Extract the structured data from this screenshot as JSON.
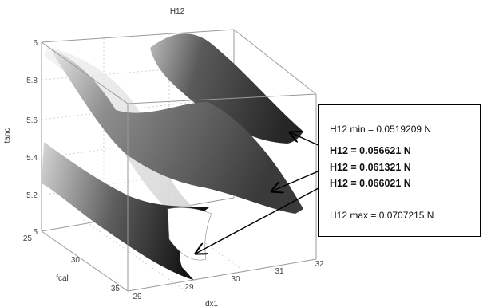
{
  "chart_data": {
    "type": "surface",
    "title": "H12",
    "axes": {
      "x": {
        "label": "dx1",
        "ticks": [
          "29",
          "29",
          "30",
          "31",
          "32"
        ]
      },
      "y": {
        "label": "fcal",
        "ticks": [
          "25",
          "30",
          "35"
        ]
      },
      "z": {
        "label": "tanc",
        "ticks": [
          "6",
          "5.8",
          "5.6",
          "5.4",
          "5.2",
          "5"
        ],
        "range": [
          5,
          6
        ]
      }
    },
    "grid": true,
    "isosurfaces": [
      {
        "name": "H12 = 0.056621 N",
        "value": 0.056621,
        "color": "#3f3f3f"
      },
      {
        "name": "H12 = 0.061321 N",
        "value": 0.061321,
        "color": "#6a6a6a"
      },
      {
        "name": "H12 = 0.066021 N",
        "value": 0.066021,
        "color": "#1e1e1e"
      }
    ],
    "annotation_lines": [
      {
        "key": "min",
        "text": "H12 min = 0.0519209 N",
        "bold": false
      },
      {
        "key": "iso1",
        "text": "H12 = 0.056621 N",
        "bold": true
      },
      {
        "key": "iso2",
        "text": "H12 = 0.061321 N",
        "bold": true
      },
      {
        "key": "iso3",
        "text": "H12 = 0.066021 N",
        "bold": true
      },
      {
        "key": "max",
        "text": "H12 max = 0.0707215 N",
        "bold": false
      }
    ],
    "min_value": 0.0519209,
    "max_value": 0.0707215
  }
}
